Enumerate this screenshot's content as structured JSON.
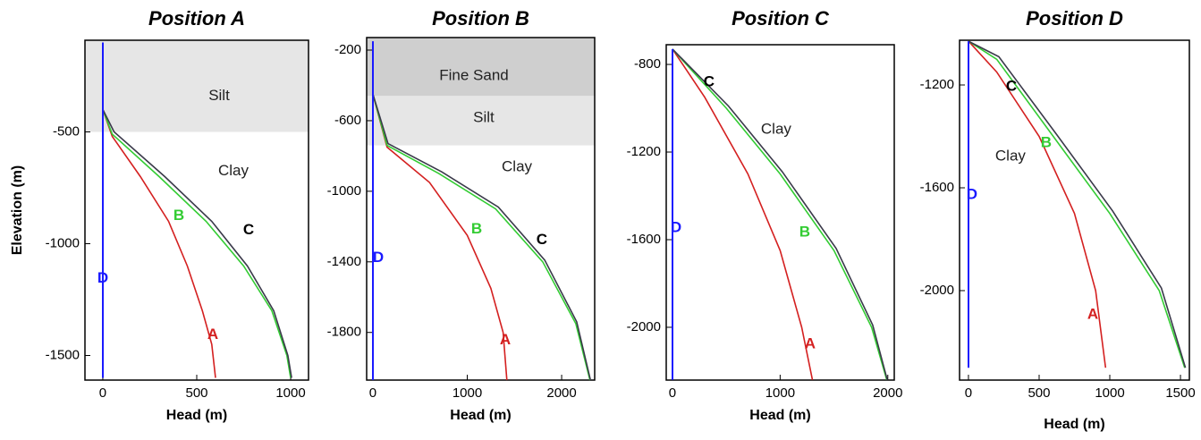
{
  "chart_data": [
    {
      "type": "line",
      "title": "Position A",
      "x_label": "Head (m)",
      "y_label": "Elevation (m)",
      "xlim": [
        -95,
        1095
      ],
      "ylim": [
        -1610,
        -90
      ],
      "xticks": [
        0,
        500,
        1000
      ],
      "yticks": [
        -500,
        -1000,
        -1500
      ],
      "layers": [
        {
          "name": "Silt",
          "top": -90,
          "bottom": -500,
          "color": "#e6e6e6"
        }
      ],
      "annotations": [
        "Clay"
      ],
      "series": [
        {
          "name": "A",
          "color": "#d42020",
          "x": [
            0,
            50,
            200,
            350,
            450,
            530,
            580,
            600
          ],
          "values": [
            -400,
            -520,
            -700,
            -900,
            -1100,
            -1300,
            -1450,
            -1600
          ]
        },
        {
          "name": "B",
          "color": "#33cc33",
          "x": [
            0,
            50,
            300,
            550,
            750,
            900,
            980,
            1000
          ],
          "values": [
            -400,
            -510,
            -700,
            -900,
            -1100,
            -1300,
            -1500,
            -1600
          ]
        },
        {
          "name": "C",
          "color": "#3a3a4a",
          "x": [
            0,
            60,
            330,
            580,
            770,
            910,
            985,
            1005
          ],
          "values": [
            -400,
            -500,
            -700,
            -900,
            -1100,
            -1300,
            -1500,
            -1600
          ]
        },
        {
          "name": "D",
          "color": "#1a1aff",
          "x": [
            0,
            0
          ],
          "values": [
            -100,
            -1600
          ]
        }
      ]
    },
    {
      "type": "line",
      "title": "Position B",
      "x_label": "Head (m)",
      "xlim": [
        -66,
        2350
      ],
      "ylim": [
        -2070,
        -129
      ],
      "xticks": [
        0,
        1000,
        2000
      ],
      "yticks": [
        -200,
        -600,
        -1000,
        -1400,
        -1800
      ],
      "layers": [
        {
          "name": "Fine Sand",
          "top": -129,
          "bottom": -460,
          "color": "#cfcfcf"
        },
        {
          "name": "Silt",
          "top": -460,
          "bottom": -740,
          "color": "#e6e6e6"
        }
      ],
      "annotations": [
        "Clay"
      ],
      "series": [
        {
          "name": "A",
          "color": "#d42020",
          "x": [
            0,
            150,
            600,
            1000,
            1250,
            1380,
            1420
          ],
          "values": [
            -450,
            -750,
            -950,
            -1250,
            -1550,
            -1800,
            -2070
          ]
        },
        {
          "name": "B",
          "color": "#33cc33",
          "x": [
            0,
            150,
            700,
            1300,
            1800,
            2150,
            2300
          ],
          "values": [
            -450,
            -740,
            -900,
            -1100,
            -1400,
            -1750,
            -2070
          ]
        },
        {
          "name": "C",
          "color": "#3a3a4a",
          "x": [
            0,
            160,
            730,
            1330,
            1820,
            2160,
            2305
          ],
          "values": [
            -450,
            -730,
            -890,
            -1090,
            -1390,
            -1740,
            -2070
          ]
        },
        {
          "name": "D",
          "color": "#1a1aff",
          "x": [
            0,
            0
          ],
          "values": [
            -150,
            -2070
          ]
        }
      ]
    },
    {
      "type": "line",
      "title": "Position C",
      "x_label": "Head (m)",
      "xlim": [
        -58,
        2060
      ],
      "ylim": [
        -2241,
        -710
      ],
      "xticks": [
        0,
        1000,
        2000
      ],
      "yticks": [
        -800,
        -1200,
        -1600,
        -2000
      ],
      "layers": [],
      "annotations": [
        "Clay"
      ],
      "series": [
        {
          "name": "A",
          "color": "#d42020",
          "x": [
            0,
            300,
            700,
            1000,
            1200,
            1300
          ],
          "values": [
            -730,
            -950,
            -1300,
            -1650,
            -2000,
            -2240
          ]
        },
        {
          "name": "B",
          "color": "#33cc33",
          "x": [
            0,
            500,
            1000,
            1500,
            1850,
            1990
          ],
          "values": [
            -730,
            -1000,
            -1300,
            -1650,
            -2000,
            -2240
          ]
        },
        {
          "name": "C",
          "color": "#3a3a4a",
          "x": [
            0,
            520,
            1020,
            1520,
            1860,
            1995
          ],
          "values": [
            -730,
            -990,
            -1290,
            -1640,
            -1990,
            -2240
          ]
        },
        {
          "name": "D",
          "color": "#1a1aff",
          "x": [
            0,
            0
          ],
          "values": [
            -730,
            -2240
          ]
        }
      ]
    },
    {
      "type": "line",
      "title": "Position D",
      "x_label": "Head (m)",
      "xlim": [
        -63,
        1563
      ],
      "ylim": [
        -2348,
        -1026
      ],
      "xticks": [
        0,
        500,
        1000,
        1500
      ],
      "yticks": [
        -1200,
        -1600,
        -2000
      ],
      "layers": [],
      "annotations": [
        "Clay"
      ],
      "series": [
        {
          "name": "A",
          "color": "#d42020",
          "x": [
            0,
            200,
            500,
            750,
            900,
            970
          ],
          "values": [
            -1030,
            -1150,
            -1400,
            -1700,
            -2000,
            -2300
          ]
        },
        {
          "name": "B",
          "color": "#33cc33",
          "x": [
            0,
            200,
            600,
            1000,
            1350,
            1530
          ],
          "values": [
            -1030,
            -1100,
            -1400,
            -1700,
            -2000,
            -2300
          ]
        },
        {
          "name": "C",
          "color": "#3a3a4a",
          "x": [
            0,
            215,
            620,
            1020,
            1365,
            1535
          ],
          "values": [
            -1030,
            -1090,
            -1390,
            -1690,
            -1990,
            -2300
          ]
        },
        {
          "name": "D",
          "color": "#1a1aff",
          "x": [
            0,
            0
          ],
          "values": [
            -1030,
            -2300
          ]
        }
      ]
    }
  ]
}
